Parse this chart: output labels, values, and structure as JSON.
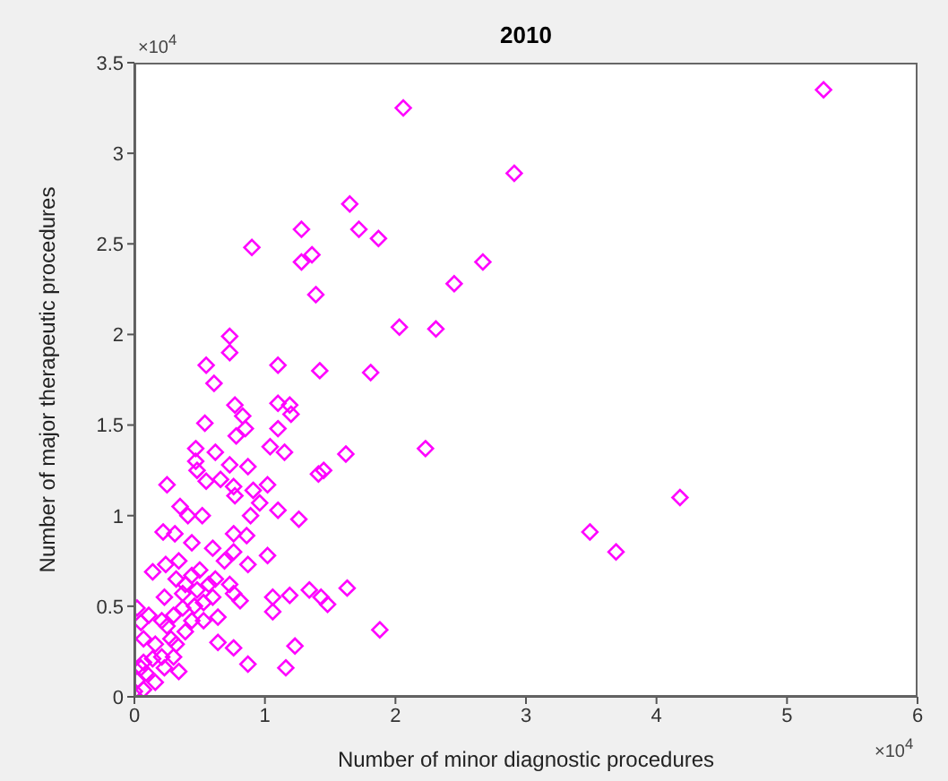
{
  "chart_data": {
    "type": "scatter",
    "title": "2010",
    "xlabel": "Number of minor diagnostic procedures",
    "ylabel": "Number of major therapeutic procedures",
    "annotations": [
      "×10$^{4}$",
      "×10$^{4}$"
    ],
    "marker": "diamond",
    "xlim": [
      0,
      6
    ],
    "xticks": [
      0,
      1,
      2,
      3,
      4,
      5,
      6
    ],
    "ylim": [
      0,
      3.5
    ],
    "yticks": [
      0,
      0.5,
      1,
      1.5,
      2,
      2.5,
      3,
      3.5
    ],
    "series": [
      {
        "color": "#ff00ff",
        "x": [
          5.28,
          2.06,
          2.91,
          1.72,
          1.87,
          2.67,
          2.45,
          2.03,
          2.31,
          1.81,
          2.23,
          4.18,
          3.49,
          3.69,
          1.88,
          0.9,
          1.28,
          1.36,
          1.28,
          1.65,
          1.39,
          0.73,
          0.73,
          0.55,
          1.1,
          1.42,
          0.61,
          0.54,
          0.77,
          0.83,
          0.85,
          0.78,
          1.1,
          1.19,
          1.2,
          1.1,
          1.04,
          1.15,
          1.62,
          1.45,
          1.41,
          0.47,
          0.62,
          0.47,
          0.48,
          0.73,
          0.87,
          0.55,
          0.66,
          0.76,
          0.77,
          0.25,
          0.91,
          1.02,
          0.96,
          0.89,
          1.1,
          1.26,
          0.35,
          0.52,
          0.41,
          0.22,
          0.31,
          0.44,
          0.6,
          0.76,
          0.86,
          0.76,
          0.69,
          0.87,
          1.02,
          0.14,
          0.24,
          0.34,
          0.5,
          0.62,
          0.73,
          1.63,
          1.34,
          1.19,
          1.06,
          1.43,
          1.48,
          1.06,
          0.81,
          0.76,
          0.02,
          0.11,
          0.23,
          0.37,
          0.46,
          0.53,
          0.64,
          0.39,
          0.28,
          0.64,
          0.76,
          1.23,
          0.87,
          1.16,
          0.34,
          0.21,
          0.07,
          0,
          0.02,
          0.05,
          0.09,
          0.14,
          0.07,
          0.16,
          0.23,
          0.3,
          0.32,
          0.25,
          0.16,
          0.07,
          0.05,
          0.44,
          0.53,
          0.6,
          0.37,
          0.3,
          0.21,
          0.48,
          0.57,
          0.39,
          0.32,
          0.44
        ],
        "values": [
          3.35,
          3.25,
          2.89,
          2.58,
          2.53,
          2.4,
          2.28,
          2.04,
          2.03,
          1.79,
          1.37,
          1.1,
          0.91,
          0.8,
          0.37,
          2.48,
          2.58,
          2.44,
          2.4,
          2.72,
          2.22,
          1.99,
          1.9,
          1.83,
          1.83,
          1.8,
          1.73,
          1.51,
          1.61,
          1.55,
          1.48,
          1.44,
          1.62,
          1.61,
          1.56,
          1.48,
          1.38,
          1.35,
          1.34,
          1.25,
          1.23,
          1.37,
          1.35,
          1.3,
          1.25,
          1.28,
          1.27,
          1.19,
          1.2,
          1.16,
          1.11,
          1.17,
          1.14,
          1.17,
          1.07,
          1.0,
          1.03,
          0.98,
          1.05,
          1.0,
          1.0,
          0.91,
          0.9,
          0.85,
          0.82,
          0.9,
          0.89,
          0.8,
          0.75,
          0.73,
          0.78,
          0.69,
          0.73,
          0.75,
          0.7,
          0.65,
          0.62,
          0.6,
          0.59,
          0.56,
          0.55,
          0.55,
          0.51,
          0.47,
          0.53,
          0.57,
          0.49,
          0.45,
          0.55,
          0.57,
          0.5,
          0.42,
          0.44,
          0.36,
          0.32,
          0.3,
          0.27,
          0.28,
          0.18,
          0.16,
          0.14,
          0.22,
          0.19,
          0.03,
          0.09,
          0.16,
          0.13,
          0.21,
          0.04,
          0.08,
          0.16,
          0.22,
          0.29,
          0.39,
          0.29,
          0.32,
          0.41,
          0.42,
          0.52,
          0.55,
          0.49,
          0.45,
          0.42,
          0.59,
          0.62,
          0.62,
          0.65,
          0.67
        ]
      }
    ]
  }
}
